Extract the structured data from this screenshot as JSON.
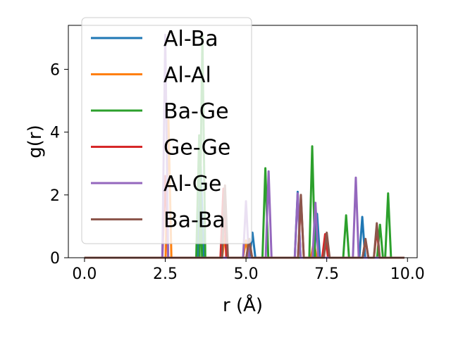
{
  "chart_data": {
    "type": "line",
    "xlabel": "r (Å)",
    "ylabel": "g(r)",
    "xlim": [
      -0.5,
      10.3
    ],
    "ylim": [
      0,
      7.4
    ],
    "xticks": [
      0.0,
      2.5,
      5.0,
      7.5,
      10.0
    ],
    "xtick_labels": [
      "0.0",
      "2.5",
      "5.0",
      "7.5",
      "10.0"
    ],
    "yticks": [
      0,
      2,
      4,
      6
    ],
    "ytick_labels": [
      "0",
      "2",
      "4",
      "6"
    ],
    "grid": false,
    "legend_position": "top-left",
    "series": [
      {
        "name": "Al-Ba",
        "color": "#1f77b4",
        "peaks": [
          [
            3.6,
            2.9
          ],
          [
            5.2,
            0.8
          ],
          [
            6.6,
            2.1
          ],
          [
            7.2,
            1.4
          ],
          [
            8.6,
            1.3
          ]
        ]
      },
      {
        "name": "Al-Al",
        "color": "#ff7f0e",
        "peaks": [
          [
            2.6,
            4.4
          ],
          [
            4.35,
            0.7
          ],
          [
            5.0,
            0.55
          ],
          [
            7.1,
            0.5
          ]
        ]
      },
      {
        "name": "Ba-Ge",
        "color": "#2ca02c",
        "peaks": [
          [
            3.55,
            3.9
          ],
          [
            3.65,
            7.1
          ],
          [
            5.6,
            2.85
          ],
          [
            7.05,
            3.55
          ],
          [
            8.1,
            1.35
          ],
          [
            9.15,
            1.05
          ],
          [
            9.4,
            2.05
          ]
        ]
      },
      {
        "name": "Ge-Ge",
        "color": "#d62728",
        "peaks": [
          [
            2.5,
            2.6
          ],
          [
            4.3,
            2.2
          ],
          [
            5.1,
            0.5
          ],
          [
            6.7,
            1.9
          ],
          [
            7.45,
            0.75
          ],
          [
            8.7,
            0.55
          ],
          [
            9.05,
            0.9
          ]
        ]
      },
      {
        "name": "Al-Ge",
        "color": "#9467bd",
        "peaks": [
          [
            2.5,
            7.1
          ],
          [
            5.0,
            1.8
          ],
          [
            5.7,
            2.75
          ],
          [
            6.6,
            2.05
          ],
          [
            7.15,
            1.75
          ],
          [
            8.4,
            2.55
          ]
        ]
      },
      {
        "name": "Ba-Ba",
        "color": "#8c564b",
        "peaks": [
          [
            4.35,
            2.3
          ],
          [
            5.1,
            0.6
          ],
          [
            6.7,
            2.0
          ],
          [
            7.5,
            0.8
          ],
          [
            8.7,
            0.6
          ],
          [
            9.05,
            1.1
          ]
        ]
      }
    ]
  }
}
